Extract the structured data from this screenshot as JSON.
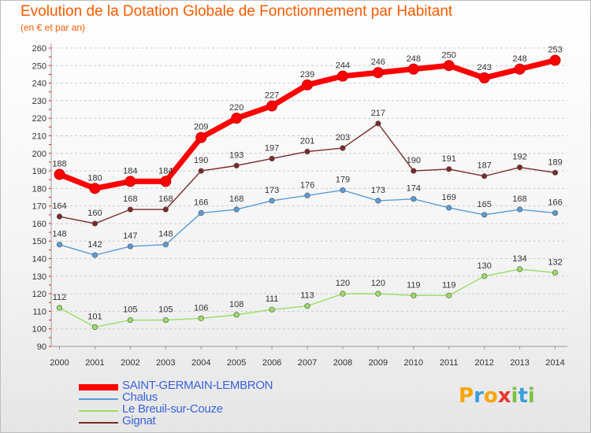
{
  "title": "Evolution de la Dotation Globale de Fonctionnement par Habitant",
  "subtitle": "(en € et par an)",
  "logo": {
    "text": "Proxiti",
    "letters": [
      "P",
      "r",
      "o",
      "x",
      "i",
      "t",
      "i"
    ],
    "colors": [
      "#f7a600",
      "#3aa0dc",
      "#f7a600",
      "#e53b2c",
      "#7cc242",
      "#3aa0dc",
      "#7cc242"
    ]
  },
  "chart_data": {
    "type": "line",
    "title": "Evolution de la Dotation Globale de Fonctionnement par Habitant",
    "subtitle": "(en € et par an)",
    "x": [
      "2000",
      "2001",
      "2002",
      "2003",
      "2004",
      "2005",
      "2006",
      "2007",
      "2008",
      "2009",
      "2010",
      "2011",
      "2012",
      "2013",
      "2014"
    ],
    "ylim": [
      90,
      260
    ],
    "yticks": [
      90,
      100,
      110,
      120,
      130,
      140,
      150,
      160,
      170,
      180,
      190,
      200,
      210,
      220,
      230,
      240,
      250,
      260
    ],
    "grid": "horizontal dashed",
    "legend_position": "bottom-left",
    "series": [
      {
        "name": "SAINT-GERMAIN-LEMBRON",
        "color": "#ff0000",
        "values": [
          188,
          180,
          184,
          184,
          209,
          220,
          227,
          239,
          244,
          246,
          248,
          250,
          243,
          248,
          253
        ]
      },
      {
        "name": "Chalus",
        "color": "#5b9bd5",
        "values": [
          148,
          142,
          147,
          148,
          166,
          168,
          173,
          176,
          179,
          173,
          174,
          169,
          165,
          168,
          166
        ]
      },
      {
        "name": "Le Breuil-sur-Couze",
        "color": "#99dd66",
        "values": [
          112,
          101,
          105,
          105,
          106,
          108,
          111,
          113,
          120,
          120,
          119,
          119,
          130,
          134,
          132
        ]
      },
      {
        "name": "Gignat",
        "color": "#7a2a2a",
        "values": [
          164,
          160,
          168,
          168,
          190,
          193,
          197,
          201,
          203,
          217,
          190,
          191,
          187,
          192,
          189
        ]
      }
    ]
  }
}
